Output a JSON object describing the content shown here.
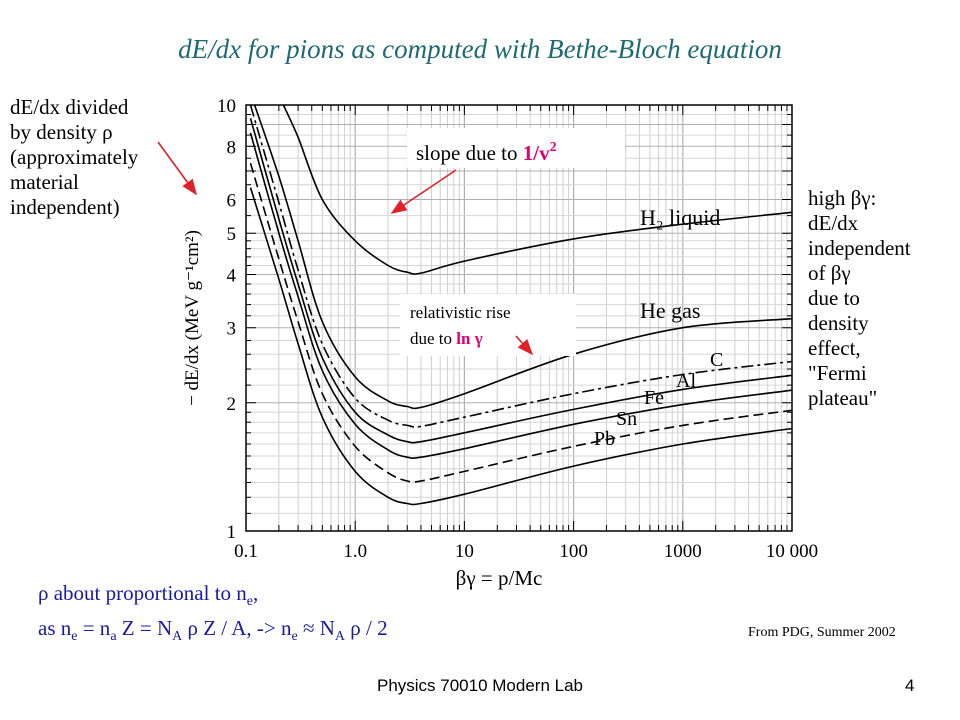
{
  "slide": {
    "title": "dE/dx for pions as computed with Bethe-Bloch equation",
    "left_note": [
      "dE/dx divided",
      "by density ρ",
      "(approximately",
      "material",
      "independent)"
    ],
    "right_note": [
      "high βγ:",
      "dE/dx",
      "independent",
      "of βγ",
      "due to",
      "density",
      "effect,",
      "\"Fermi",
      "plateau\""
    ],
    "callout_slope": {
      "text": "slope due to ",
      "highlight": "1/v",
      "sup": "2"
    },
    "callout_rise": {
      "line1": "relativistic rise",
      "line2": "due to ",
      "highlight": "ln γ"
    },
    "bottom_note": {
      "line1": "ρ about proportional to n",
      "line1_sub": "e",
      "line1_end": ",",
      "line2_parts": [
        {
          "t": "as n",
          "sub": "e"
        },
        {
          "t": " = n",
          "sub": "a"
        },
        {
          "t": " Z = N",
          "sub": "A"
        },
        {
          "t": " ρ Z / A, -> n",
          "sub": "e"
        },
        {
          "t": " ≈ N",
          "sub": "A"
        },
        {
          "t": " ρ / 2",
          "sub": ""
        }
      ]
    },
    "credit": "From PDG, Summer 2002",
    "footer": "Physics 70010 Modern Lab",
    "page_number": "4"
  },
  "colors": {
    "title": "#1d6a73",
    "highlight": "#e0006f",
    "arrow": "#e0202a",
    "bottom_note": "#1a1aa0"
  },
  "chart_data": {
    "type": "line",
    "xlabel": "βγ = p/Mc",
    "ylabel": "− dE/dx (MeV g⁻¹cm²)",
    "xscale": "log",
    "yscale": "log",
    "xlim": [
      0.1,
      10000
    ],
    "ylim": [
      1,
      10
    ],
    "x_tick_labels": [
      "0.1",
      "1.0",
      "10",
      "100",
      "1000",
      "10 000"
    ],
    "x_ticks": [
      0.1,
      1,
      10,
      100,
      1000,
      10000
    ],
    "y_tick_labels": [
      "1",
      "2",
      "3",
      "4",
      "5",
      "6",
      "8",
      "10"
    ],
    "y_ticks": [
      1,
      2,
      3,
      4,
      5,
      6,
      8,
      10
    ],
    "grid": true,
    "series": [
      {
        "name": "H₂ liquid",
        "style": "solid",
        "x": [
          0.22,
          0.3,
          0.5,
          1,
          2,
          3,
          4,
          10,
          100,
          1000,
          10000
        ],
        "y": [
          10,
          8.4,
          6.0,
          4.8,
          4.2,
          4.05,
          4.03,
          4.3,
          4.85,
          5.25,
          5.6
        ]
      },
      {
        "name": "He gas",
        "style": "solid",
        "x": [
          0.12,
          0.2,
          0.3,
          0.5,
          1,
          2,
          3,
          4,
          10,
          100,
          1000,
          10000
        ],
        "y": [
          10,
          6.8,
          4.8,
          3.1,
          2.3,
          2.02,
          1.96,
          1.95,
          2.1,
          2.6,
          3.0,
          3.15
        ]
      },
      {
        "name": "C",
        "style": "dashdot",
        "x": [
          0.11,
          0.2,
          0.3,
          0.5,
          1,
          2,
          3,
          4,
          10,
          100,
          1000,
          10000
        ],
        "y": [
          10,
          5.9,
          4.1,
          2.75,
          2.05,
          1.82,
          1.77,
          1.76,
          1.85,
          2.1,
          2.33,
          2.5
        ]
      },
      {
        "name": "Al",
        "style": "solid",
        "x": [
          0.11,
          0.2,
          0.3,
          0.5,
          1,
          2,
          3,
          4,
          10,
          100,
          1000,
          10000
        ],
        "y": [
          9.3,
          5.4,
          3.8,
          2.55,
          1.9,
          1.68,
          1.62,
          1.62,
          1.7,
          1.93,
          2.15,
          2.32
        ]
      },
      {
        "name": "Fe",
        "style": "solid",
        "x": [
          0.11,
          0.2,
          0.3,
          0.5,
          1,
          2,
          3,
          4,
          10,
          100,
          1000,
          10000
        ],
        "y": [
          8.6,
          5.0,
          3.55,
          2.38,
          1.78,
          1.55,
          1.49,
          1.49,
          1.56,
          1.78,
          1.98,
          2.14
        ]
      },
      {
        "name": "Sn",
        "style": "dashed",
        "x": [
          0.11,
          0.2,
          0.3,
          0.5,
          1,
          2,
          3,
          4,
          10,
          100,
          1000,
          10000
        ],
        "y": [
          7.3,
          4.35,
          3.1,
          2.1,
          1.58,
          1.37,
          1.31,
          1.31,
          1.38,
          1.58,
          1.77,
          1.92
        ]
      },
      {
        "name": "Pb",
        "style": "solid",
        "x": [
          0.11,
          0.2,
          0.3,
          0.5,
          1,
          2,
          3,
          4,
          10,
          100,
          1000,
          10000
        ],
        "y": [
          6.4,
          3.9,
          2.75,
          1.85,
          1.38,
          1.2,
          1.16,
          1.16,
          1.22,
          1.42,
          1.6,
          1.74
        ]
      }
    ]
  }
}
